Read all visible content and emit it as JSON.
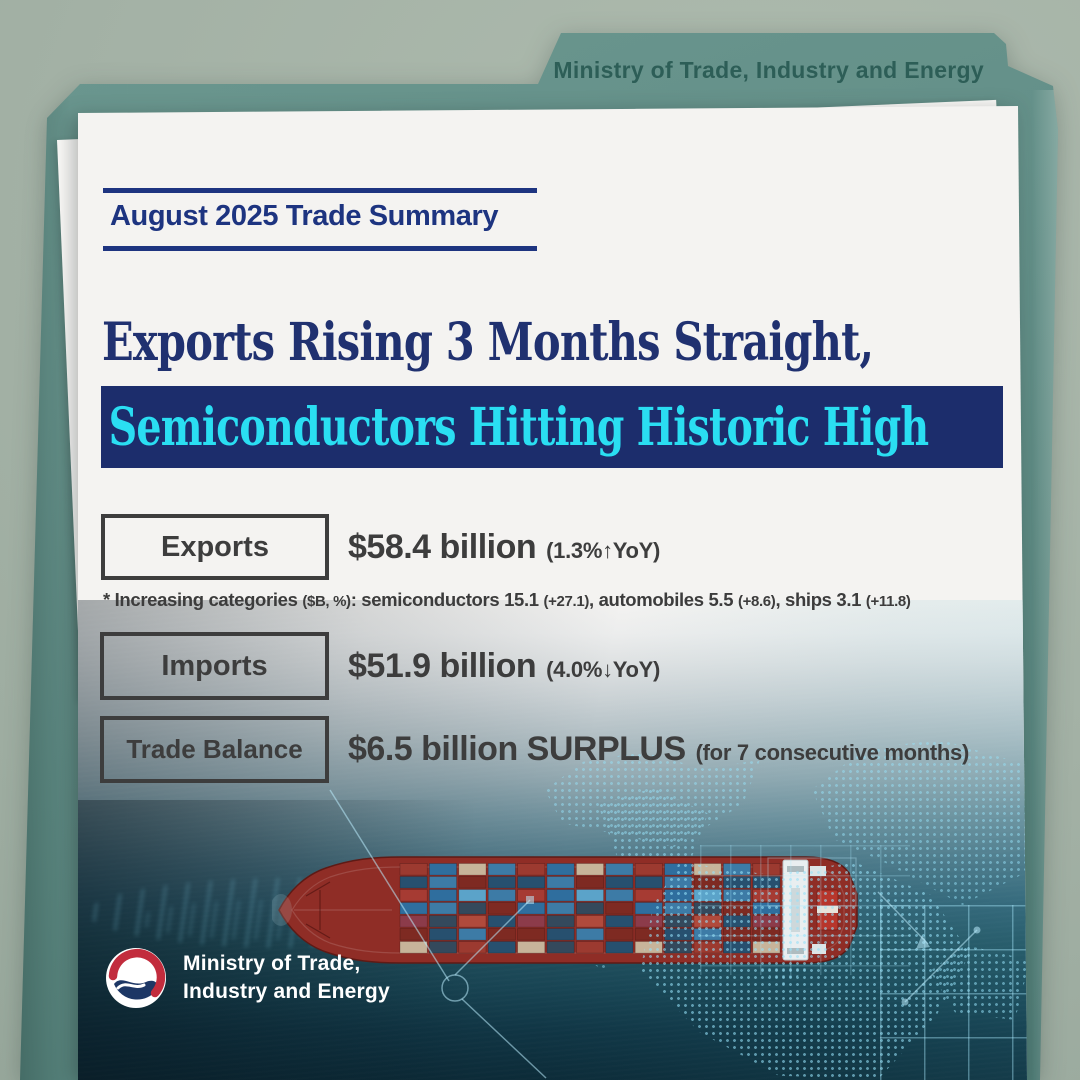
{
  "folder": {
    "tab_label": "Ministry of Trade, Industry and Energy"
  },
  "header": {
    "kicker": "August 2025 Trade Summary"
  },
  "headline": {
    "line1": "Exports Rising 3 Months Straight,",
    "line2": "Semiconductors Hitting Historic High"
  },
  "stats": [
    {
      "label": "Exports",
      "value": "$58.4 billion",
      "note": "(1.3%↑YoY)"
    },
    {
      "label": "Imports",
      "value": "$51.9 billion",
      "note": "(4.0%↓YoY)"
    },
    {
      "label": "Trade Balance",
      "value": "$6.5 billion SURPLUS",
      "note": "(for 7 consecutive months)"
    }
  ],
  "footnote": {
    "segments": [
      {
        "t": "* Increasing categories ",
        "small": false
      },
      {
        "t": "($B, %)",
        "small": true
      },
      {
        "t": ": semiconductors 15.1 ",
        "small": false
      },
      {
        "t": "(+27.1)",
        "small": true
      },
      {
        "t": ", automobiles 5.5 ",
        "small": false
      },
      {
        "t": "(+8.6)",
        "small": true
      },
      {
        "t": ", ships 3.1 ",
        "small": false
      },
      {
        "t": "(+11.8)",
        "small": true
      }
    ]
  },
  "logo": {
    "line1": "Ministry of Trade,",
    "line2": "Industry and Energy"
  },
  "colors": {
    "navy": "#1d3480",
    "headline_navy": "#203170",
    "highlight_bar": "#1c2d6c",
    "cyan": "#2adef2",
    "ink": "#3c3c3c",
    "folder_teal": "#5f8c85",
    "folder_text": "#2d5e57",
    "paper": "#f4f3f1",
    "ocean_deep": "#0c2b38",
    "map_glow": "#8fdcf5",
    "logo_red": "#c22c3d",
    "logo_blue": "#1d3765",
    "containers": [
      "#9c3a30",
      "#7e2a22",
      "#b04a3c",
      "#2f6e9e",
      "#5ba3c9",
      "#27506f",
      "#c7b49a",
      "#ded6c6",
      "#8c3b4a",
      "#3d7ba6",
      "#a63b33",
      "#34495c"
    ]
  }
}
